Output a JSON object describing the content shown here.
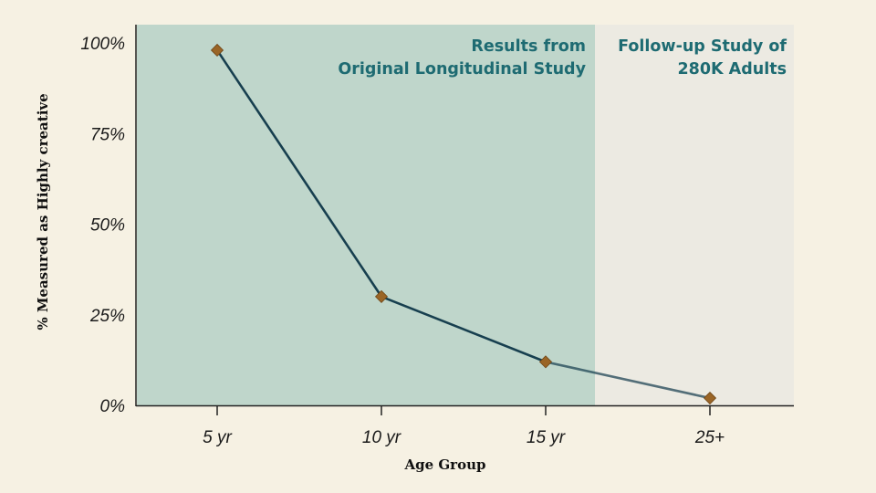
{
  "colors": {
    "background": "#f6f1e3",
    "region_original": "#bfd6cb",
    "region_followup": "#eceae2",
    "line": "#173f4f",
    "marker": "#9a6526",
    "annotation": "#1e6b72",
    "axis": "#222222"
  },
  "chart_data": {
    "type": "line",
    "title": "",
    "xlabel": "Age Group",
    "ylabel": "% Measured as Highly creative",
    "categories": [
      "5 yr",
      "10 yr",
      "15 yr",
      "25+"
    ],
    "ylim": [
      0,
      100
    ],
    "yticks": [
      "0%",
      "25%",
      "50%",
      "75%",
      "100%"
    ],
    "ytick_values": [
      0,
      25,
      50,
      75,
      100
    ],
    "series": [
      {
        "name": "% Measured as Highly creative",
        "values": [
          98,
          30,
          12,
          2
        ]
      }
    ],
    "regions": [
      {
        "name": "original",
        "label_lines": [
          "Results from",
          "Original Longitudinal Study"
        ],
        "from_category": 0,
        "to_category": 2
      },
      {
        "name": "followup",
        "label_lines": [
          "Follow-up Study of",
          "280K Adults"
        ],
        "from_category": 2,
        "to_category": 3
      }
    ]
  }
}
